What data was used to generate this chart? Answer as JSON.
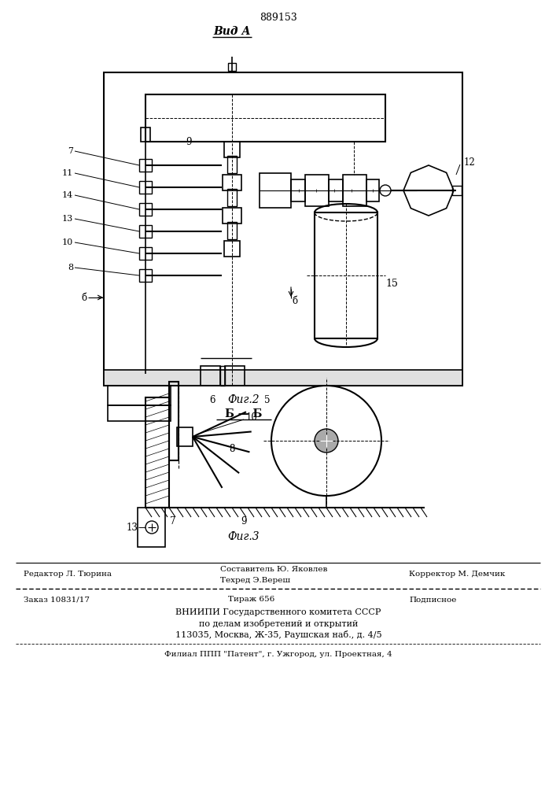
{
  "patent_number": "889153",
  "view_label": "Вид А",
  "fig2_label": "Фиг.2",
  "fig3_label": "Фиг.3",
  "section_label": "Б — Б",
  "background": "#ffffff",
  "lc": "#000000",
  "editor_line": "Редактор Л. Тюрина",
  "composer_line": "Составитель Ю. Яковлев",
  "techred_line": "Техред Э.Вереш",
  "corrector_line": "Корректор М. Демчик",
  "order_line": "Заказ 10831/17",
  "tirazh_line": "Тираж 656",
  "podpisnoe_line": "Подписное",
  "vniiipi_line1": "ВНИИПИ Государственного комитета СССР",
  "vniiipi_line2": "по делам изобретений и открытий",
  "vniiipi_line3": "113035, Москва, Ж-35, Раушская наб., д. 4/5",
  "filial_line": "Филиал ППП \"Патент\", г. Ужгород, ул. Проектная, 4"
}
